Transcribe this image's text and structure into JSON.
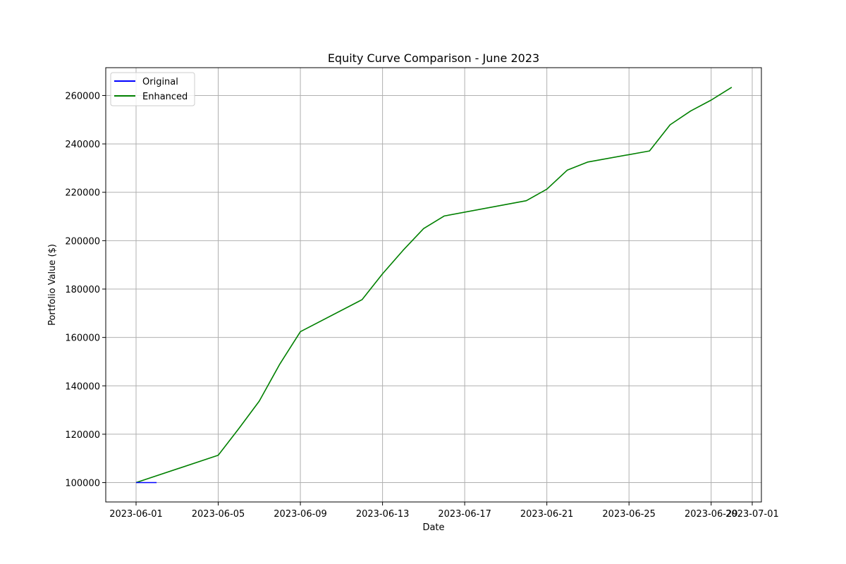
{
  "chart_data": {
    "type": "line",
    "title": "Equity Curve Comparison - June 2023",
    "xlabel": "Date",
    "ylabel": "Portfolio Value ($)",
    "grid": true,
    "legend_position": "top-left",
    "xlim": [
      "2023-05-30",
      "2023-07-01"
    ],
    "ylim": [
      92000,
      271500
    ],
    "x_ticks": [
      "2023-06-01",
      "2023-06-05",
      "2023-06-09",
      "2023-06-13",
      "2023-06-17",
      "2023-06-21",
      "2023-06-25",
      "2023-06-29",
      "2023-07-01"
    ],
    "y_ticks": [
      100000,
      120000,
      140000,
      160000,
      180000,
      200000,
      220000,
      240000,
      260000
    ],
    "series": [
      {
        "name": "Original",
        "color": "#0000ff",
        "x": [
          "2023-06-01",
          "2023-06-02"
        ],
        "y": [
          100000,
          100000
        ]
      },
      {
        "name": "Enhanced",
        "color": "#008000",
        "x": [
          "2023-06-01",
          "2023-06-05",
          "2023-06-06",
          "2023-06-07",
          "2023-06-08",
          "2023-06-09",
          "2023-06-12",
          "2023-06-13",
          "2023-06-14",
          "2023-06-15",
          "2023-06-16",
          "2023-06-20",
          "2023-06-21",
          "2023-06-22",
          "2023-06-23",
          "2023-06-26",
          "2023-06-27",
          "2023-06-28",
          "2023-06-29",
          "2023-06-30"
        ],
        "y": [
          100000,
          111300,
          122300,
          133700,
          149000,
          162400,
          175600,
          186300,
          196000,
          205000,
          210200,
          216500,
          221300,
          229200,
          232500,
          237100,
          247900,
          253600,
          258100,
          263400
        ]
      }
    ]
  }
}
